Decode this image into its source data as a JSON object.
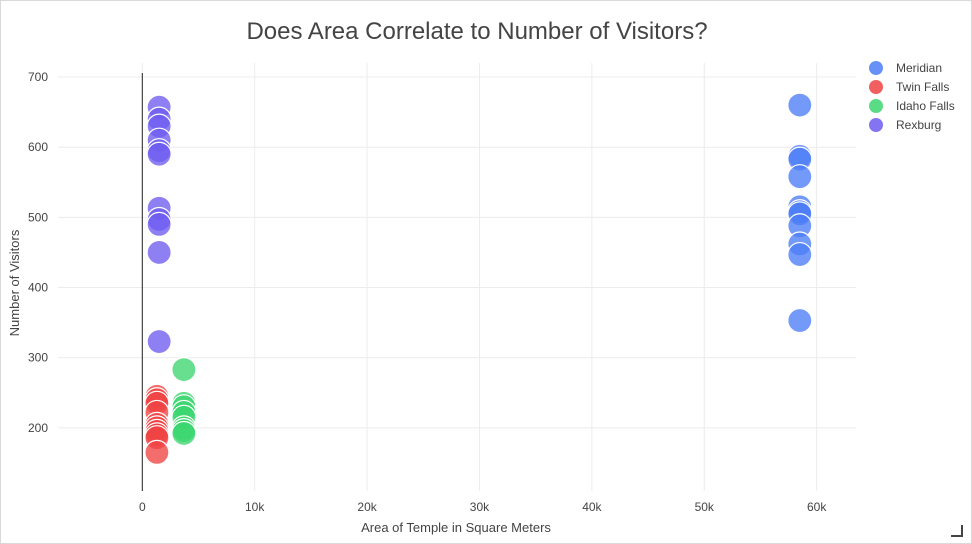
{
  "chart_data": {
    "type": "scatter",
    "title": "Does Area Correlate to Number of Visitors?",
    "xlabel": "Area of Temple in Square Meters",
    "ylabel": "Number of Visitors",
    "xlim": [
      -7500,
      63500
    ],
    "ylim": [
      110,
      720
    ],
    "x_ticks": [
      0,
      10000,
      20000,
      30000,
      40000,
      50000,
      60000
    ],
    "x_tick_labels": [
      "0",
      "10k",
      "20k",
      "30k",
      "40k",
      "50k",
      "60k"
    ],
    "y_ticks": [
      200,
      300,
      400,
      500,
      600,
      700
    ],
    "y_tick_labels": [
      "200",
      "300",
      "400",
      "500",
      "600",
      "700"
    ],
    "grid": true,
    "legend_position": "top-right",
    "series": [
      {
        "name": "Meridian",
        "color": "#4d7ef7",
        "points": [
          [
            58500,
            660
          ],
          [
            58500,
            587
          ],
          [
            58500,
            583
          ],
          [
            58500,
            558
          ],
          [
            58500,
            515
          ],
          [
            58500,
            508
          ],
          [
            58500,
            505
          ],
          [
            58500,
            488
          ],
          [
            58500,
            462
          ],
          [
            58500,
            447
          ],
          [
            58500,
            353
          ]
        ]
      },
      {
        "name": "Twin Falls",
        "color": "#ef4444",
        "points": [
          [
            1300,
            245
          ],
          [
            1300,
            240
          ],
          [
            1300,
            235
          ],
          [
            1300,
            222
          ],
          [
            1300,
            205
          ],
          [
            1300,
            200
          ],
          [
            1300,
            195
          ],
          [
            1300,
            190
          ],
          [
            1300,
            186
          ],
          [
            1300,
            165
          ]
        ]
      },
      {
        "name": "Idaho Falls",
        "color": "#3cd670",
        "points": [
          [
            3700,
            283
          ],
          [
            3700,
            235
          ],
          [
            3700,
            230
          ],
          [
            3700,
            222
          ],
          [
            3700,
            215
          ],
          [
            3700,
            200
          ],
          [
            3700,
            196
          ],
          [
            3700,
            192
          ]
        ]
      },
      {
        "name": "Rexburg",
        "color": "#6e5cf0",
        "points": [
          [
            1500,
            657
          ],
          [
            1500,
            640
          ],
          [
            1500,
            630
          ],
          [
            1500,
            610
          ],
          [
            1500,
            595
          ],
          [
            1500,
            590
          ],
          [
            1500,
            513
          ],
          [
            1500,
            497
          ],
          [
            1500,
            490
          ],
          [
            1500,
            450
          ],
          [
            1500,
            323
          ]
        ]
      }
    ]
  }
}
